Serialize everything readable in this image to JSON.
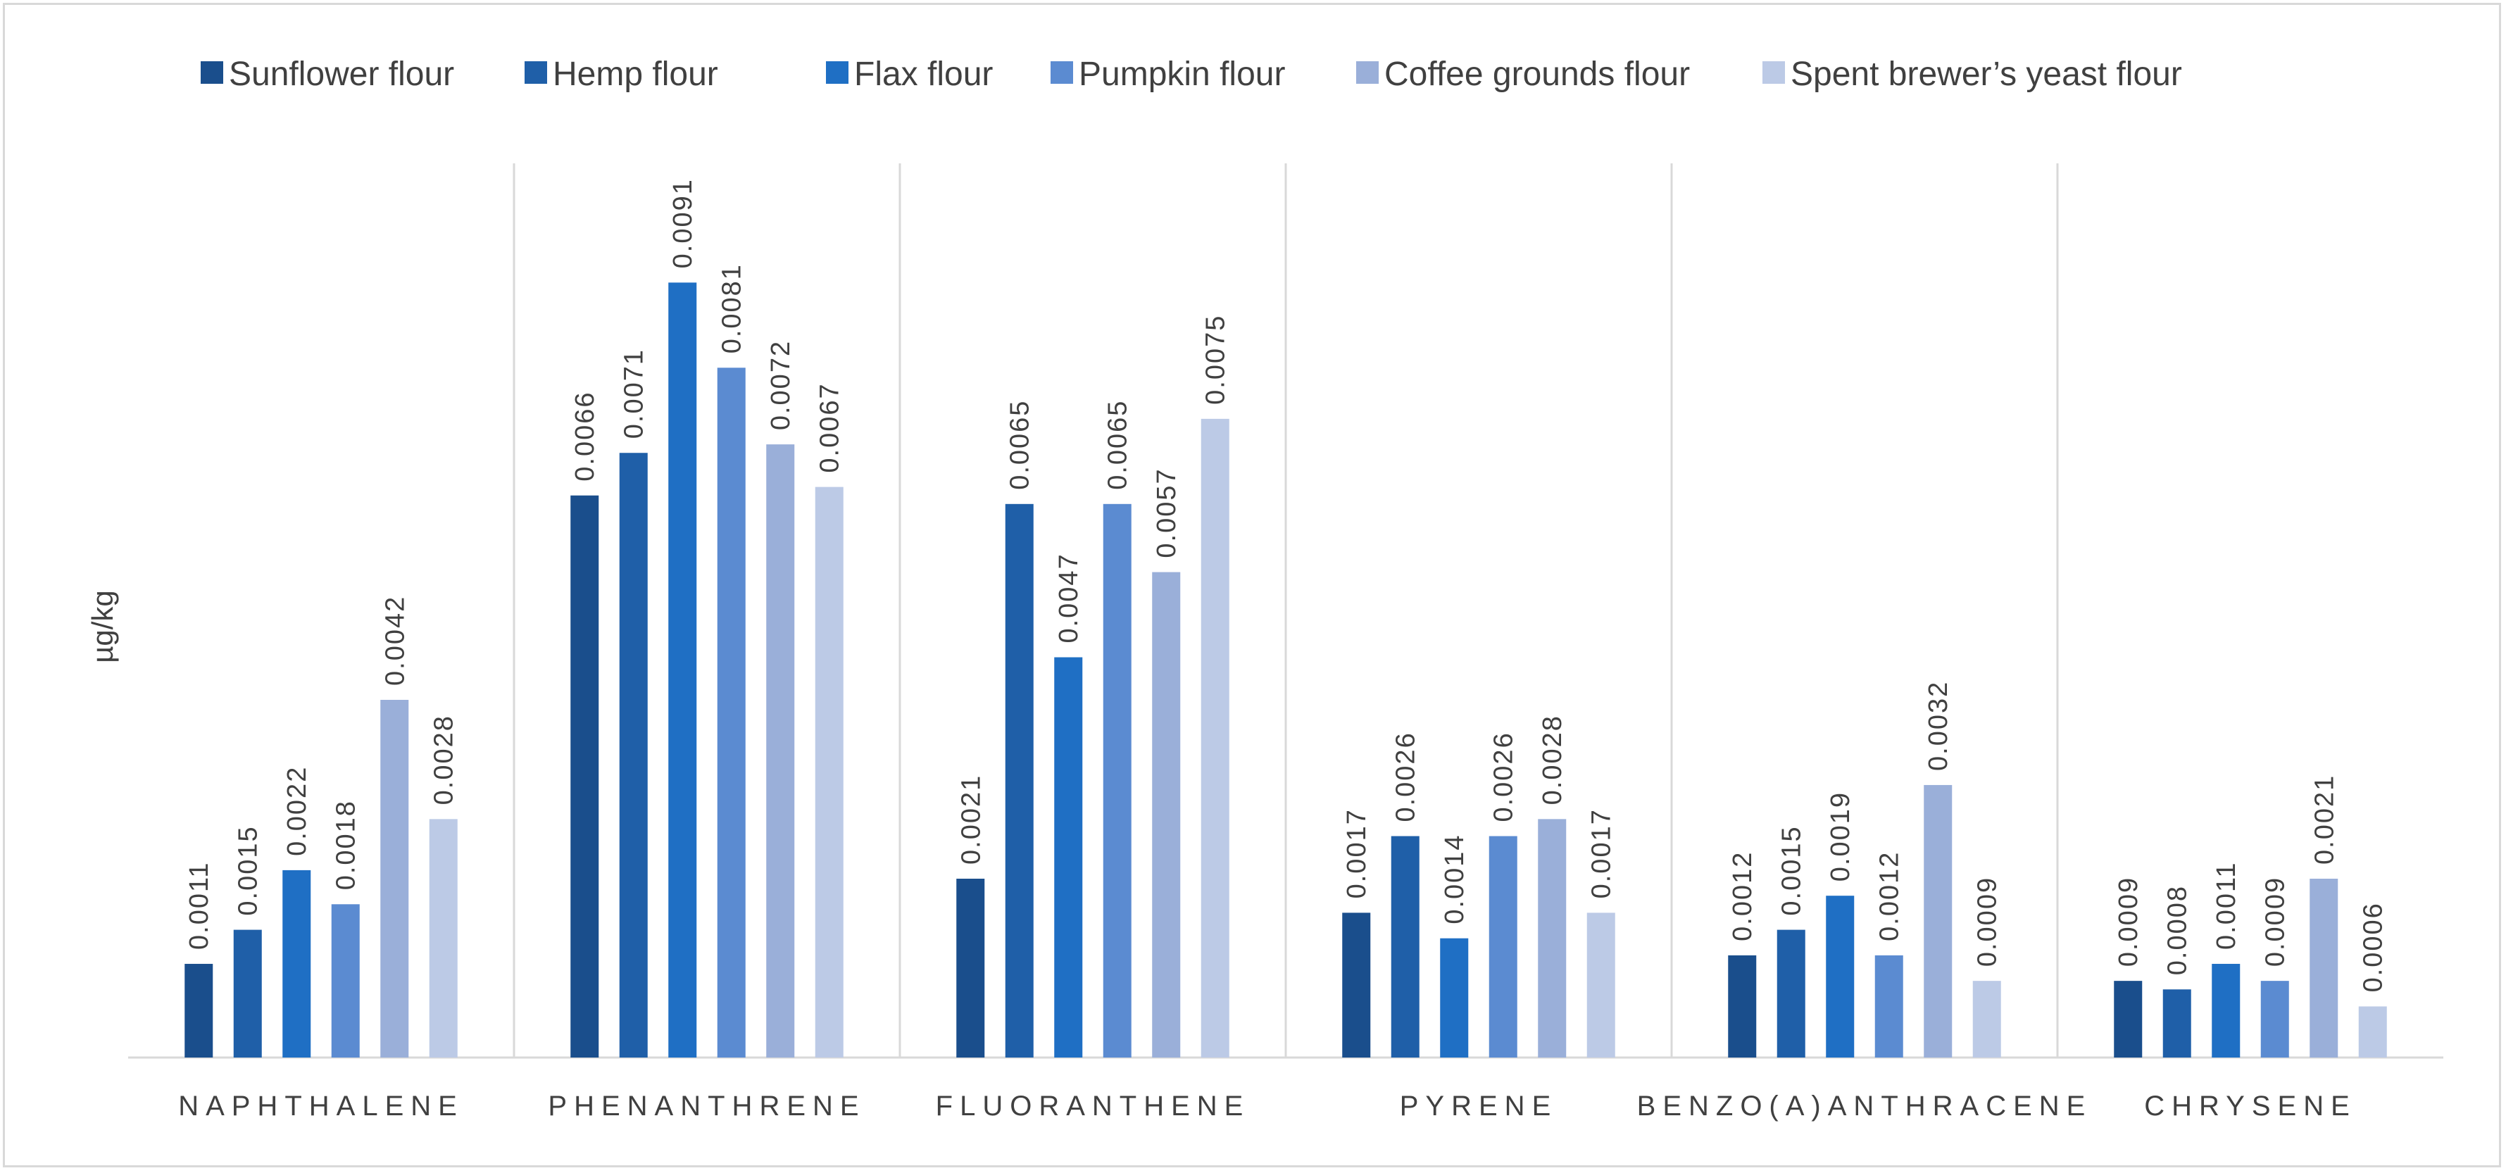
{
  "chart_data": {
    "type": "bar",
    "title": "",
    "xlabel": "",
    "ylabel": "µg/kg",
    "ylim": [
      0,
      0.0105
    ],
    "grid": false,
    "legend_position": "top",
    "categories": [
      "NAPHTHALENE",
      "PHENANTHRENE",
      "FLUORANTHENE",
      "PYRENE",
      "BENZO(A)ANTHRACENE",
      "CHRYSENE"
    ],
    "series": [
      {
        "name": "Sunflower flour",
        "color": "#1a4e8c",
        "values": [
          0.0011,
          0.0066,
          0.0021,
          0.0017,
          0.0012,
          0.0009
        ],
        "labels": [
          "0.0011",
          "0.0066",
          "0.0021",
          "0.0017",
          "0.0012",
          "0.0009"
        ]
      },
      {
        "name": "Hemp flour",
        "color": "#1f5fa8",
        "values": [
          0.0015,
          0.0071,
          0.0065,
          0.0026,
          0.0015,
          0.0008
        ],
        "labels": [
          "0.0015",
          "0.0071",
          "0.0065",
          "0.0026",
          "0.0015",
          "0.0008"
        ]
      },
      {
        "name": "Flax flour",
        "color": "#1f6fc4",
        "values": [
          0.0022,
          0.0091,
          0.0047,
          0.0014,
          0.0019,
          0.0011
        ],
        "labels": [
          "0.0022",
          "0.0091",
          "0.0047",
          "0.0014",
          "0.0019",
          "0.0011"
        ]
      },
      {
        "name": "Pumpkin flour",
        "color": "#5b8bd1",
        "values": [
          0.0018,
          0.0081,
          0.0065,
          0.0026,
          0.0012,
          0.0009
        ],
        "labels": [
          "0.0018",
          "0.0081",
          "0.0065",
          "0.0026",
          "0.0012",
          "0.0009"
        ]
      },
      {
        "name": "Coffee grounds flour",
        "color": "#9aafd9",
        "values": [
          0.0042,
          0.0072,
          0.0057,
          0.0028,
          0.0032,
          0.0021
        ],
        "labels": [
          "0.0042",
          "0.0072",
          "0.0057",
          "0.0028",
          "0.0032",
          "0.0021"
        ]
      },
      {
        "name": "Spent brewer’s yeast flour",
        "color": "#bccae6",
        "values": [
          0.0028,
          0.0067,
          0.0075,
          0.0017,
          0.0009,
          0.0006
        ],
        "labels": [
          "0.0028",
          "0.0067",
          "0.0075",
          "0.0017",
          "0.0009",
          "0.0006"
        ]
      }
    ]
  }
}
